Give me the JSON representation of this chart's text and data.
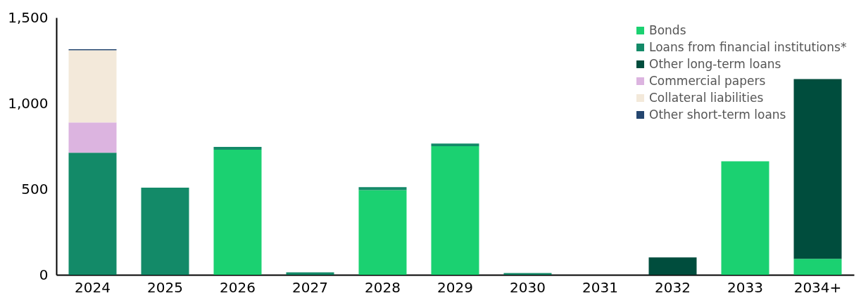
{
  "chart_data": {
    "type": "bar",
    "stacked": true,
    "categories": [
      "2024",
      "2025",
      "2026",
      "2027",
      "2028",
      "2029",
      "2030",
      "2031",
      "2032",
      "2033",
      "2034+"
    ],
    "series": [
      {
        "name": "Bonds",
        "color": "#1bd171",
        "values": [
          null,
          null,
          729,
          null,
          494,
          750,
          null,
          null,
          null,
          662,
          93
        ]
      },
      {
        "name": "Loans from financial institutions*",
        "color": "#138a68",
        "values": [
          712,
          508,
          17,
          14,
          17,
          15,
          10,
          null,
          null,
          null,
          null
        ]
      },
      {
        "name": "Other long-term loans",
        "color": "#004d3d",
        "values": [
          null,
          null,
          null,
          null,
          null,
          null,
          null,
          null,
          101,
          null,
          1048
        ]
      },
      {
        "name": "Commercial papers",
        "color": "#dcb4e0",
        "values": [
          176,
          null,
          null,
          null,
          null,
          null,
          null,
          null,
          null,
          null,
          null
        ]
      },
      {
        "name": "Collateral liabilities",
        "color": "#f3e9da",
        "values": [
          421,
          null,
          null,
          null,
          null,
          null,
          null,
          null,
          null,
          null,
          null
        ]
      },
      {
        "name": "Other short-term loans",
        "color": "#25466f",
        "values": [
          7,
          null,
          null,
          null,
          null,
          null,
          null,
          null,
          null,
          null,
          null
        ]
      }
    ],
    "ylim": [
      0,
      1500
    ],
    "yticks": [
      0,
      500,
      {
        "value": 1000,
        "label": "1,000"
      },
      {
        "value": 1500,
        "label": "1,500"
      }
    ],
    "grid": false,
    "legend": "top right"
  }
}
